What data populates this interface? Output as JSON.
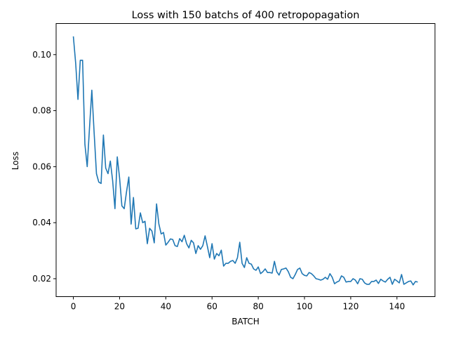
{
  "chart_data": {
    "type": "line",
    "title": "Loss with 150 batchs of 400 retropopagation",
    "xlabel": "BATCH",
    "ylabel": "Loss",
    "xlim": [
      -7.45,
      156.45
    ],
    "ylim": [
      0.0136,
      0.1111
    ],
    "xticks": [
      0,
      20,
      40,
      60,
      80,
      100,
      120,
      140
    ],
    "xtick_labels": [
      "0",
      "20",
      "40",
      "60",
      "80",
      "100",
      "120",
      "140"
    ],
    "yticks": [
      0.02,
      0.04,
      0.06,
      0.08,
      0.1
    ],
    "ytick_labels": [
      "0.02",
      "0.04",
      "0.06",
      "0.08",
      "0.10"
    ],
    "grid": false,
    "series": [
      {
        "color": "#1f77b4",
        "x": [
          0,
          1,
          2,
          3,
          4,
          5,
          6,
          7,
          8,
          9,
          10,
          11,
          12,
          13,
          14,
          15,
          16,
          17,
          18,
          19,
          20,
          21,
          22,
          23,
          24,
          25,
          26,
          27,
          28,
          29,
          30,
          31,
          32,
          33,
          34,
          35,
          36,
          37,
          38,
          39,
          40,
          41,
          42,
          43,
          44,
          45,
          46,
          47,
          48,
          49,
          50,
          51,
          52,
          53,
          54,
          55,
          56,
          57,
          58,
          59,
          60,
          61,
          62,
          63,
          64,
          65,
          66,
          67,
          68,
          69,
          70,
          71,
          72,
          73,
          74,
          75,
          76,
          77,
          78,
          79,
          80,
          81,
          82,
          83,
          84,
          85,
          86,
          87,
          88,
          89,
          90,
          91,
          92,
          93,
          94,
          95,
          96,
          97,
          98,
          99,
          100,
          101,
          102,
          103,
          104,
          105,
          106,
          107,
          108,
          109,
          110,
          111,
          112,
          113,
          114,
          115,
          116,
          117,
          118,
          119,
          120,
          121,
          122,
          123,
          124,
          125,
          126,
          127,
          128,
          129,
          130,
          131,
          132,
          133,
          134,
          135,
          136,
          137,
          138,
          139,
          140,
          141,
          142,
          143,
          144,
          145,
          146,
          147,
          148,
          149
        ],
        "values": [
          0.1065,
          0.097,
          0.084,
          0.098,
          0.098,
          0.068,
          0.06,
          0.074,
          0.0873,
          0.072,
          0.0575,
          0.0545,
          0.054,
          0.0713,
          0.0595,
          0.0575,
          0.062,
          0.055,
          0.045,
          0.0635,
          0.056,
          0.046,
          0.045,
          0.051,
          0.0563,
          0.0395,
          0.049,
          0.0378,
          0.038,
          0.0435,
          0.04,
          0.0405,
          0.0325,
          0.038,
          0.037,
          0.0328,
          0.0467,
          0.0395,
          0.036,
          0.0365,
          0.032,
          0.033,
          0.0342,
          0.034,
          0.0318,
          0.0315,
          0.0343,
          0.0332,
          0.0355,
          0.0325,
          0.031,
          0.0337,
          0.0328,
          0.029,
          0.0318,
          0.0305,
          0.0318,
          0.0353,
          0.0315,
          0.0275,
          0.0325,
          0.027,
          0.029,
          0.0282,
          0.0302,
          0.0245,
          0.0255,
          0.0255,
          0.0262,
          0.0265,
          0.0255,
          0.0275,
          0.033,
          0.0255,
          0.024,
          0.0275,
          0.0255,
          0.0252,
          0.0235,
          0.023,
          0.0242,
          0.0218,
          0.0225,
          0.0235,
          0.0222,
          0.0222,
          0.022,
          0.0262,
          0.0225,
          0.0213,
          0.0233,
          0.0235,
          0.0238,
          0.0225,
          0.0205,
          0.02,
          0.0215,
          0.0233,
          0.0238,
          0.0218,
          0.0212,
          0.021,
          0.0222,
          0.0218,
          0.021,
          0.02,
          0.0198,
          0.0195,
          0.0198,
          0.0205,
          0.0198,
          0.0218,
          0.0205,
          0.0182,
          0.0188,
          0.0192,
          0.021,
          0.0205,
          0.0188,
          0.019,
          0.019,
          0.02,
          0.0195,
          0.0182,
          0.02,
          0.0198,
          0.0185,
          0.018,
          0.018,
          0.019,
          0.019,
          0.0195,
          0.0183,
          0.0198,
          0.0192,
          0.0188,
          0.0198,
          0.0205,
          0.018,
          0.0198,
          0.0192,
          0.0185,
          0.0215,
          0.018,
          0.0185,
          0.019,
          0.0192,
          0.0178,
          0.019,
          0.0188
        ]
      }
    ]
  }
}
